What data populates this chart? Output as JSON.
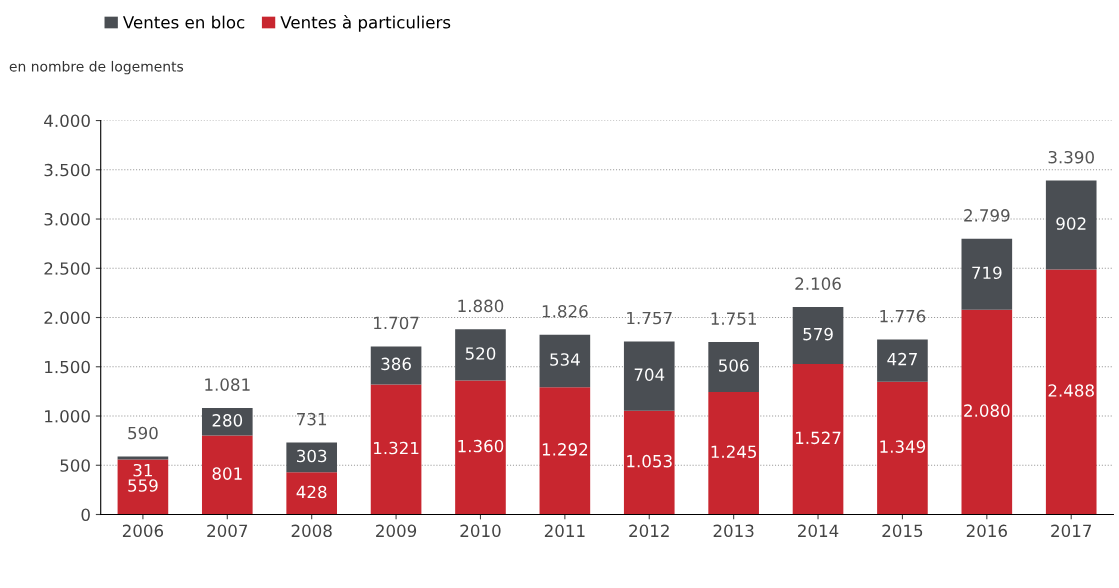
{
  "chart_data": {
    "type": "bar",
    "stacked": true,
    "ylabel": "en nombre de logements",
    "categories": [
      "2006",
      "2007",
      "2008",
      "2009",
      "2010",
      "2011",
      "2012",
      "2013",
      "2014",
      "2015",
      "2016",
      "2017"
    ],
    "series": [
      {
        "name": "Ventes à particuliers",
        "color": "#c8262f",
        "values": [
          559,
          801,
          428,
          1321,
          1360,
          1292,
          1053,
          1245,
          1527,
          1349,
          2080,
          2488
        ],
        "value_labels": [
          "559",
          "801",
          "428",
          "1.321",
          "1.360",
          "1.292",
          "1.053",
          "1.245",
          "1.527",
          "1.349",
          "2.080",
          "2.488"
        ]
      },
      {
        "name": "Ventes en bloc",
        "color": "#4a4e53",
        "values": [
          31,
          280,
          303,
          386,
          520,
          534,
          704,
          506,
          579,
          427,
          719,
          902
        ],
        "value_labels": [
          "31",
          "280",
          "303",
          "386",
          "520",
          "534",
          "704",
          "506",
          "579",
          "427",
          "719",
          "902"
        ]
      }
    ],
    "totals": [
      "590",
      "1.081",
      "731",
      "1.707",
      "1.880",
      "1.826",
      "1.757",
      "1.751",
      "2.106",
      "1.776",
      "2.799",
      "3.390"
    ],
    "ylim": [
      0,
      4000
    ],
    "yticks": [
      {
        "value": 0,
        "label": "0"
      },
      {
        "value": 500,
        "label": "500"
      },
      {
        "value": 1000,
        "label": "1.000"
      },
      {
        "value": 1500,
        "label": "1.500"
      },
      {
        "value": 2000,
        "label": "2.000"
      },
      {
        "value": 2500,
        "label": "2.500"
      },
      {
        "value": 3000,
        "label": "3.000"
      },
      {
        "value": 3500,
        "label": "3.500"
      },
      {
        "value": 4000,
        "label": "4.000"
      }
    ],
    "grid": "y",
    "legend": "top left"
  }
}
